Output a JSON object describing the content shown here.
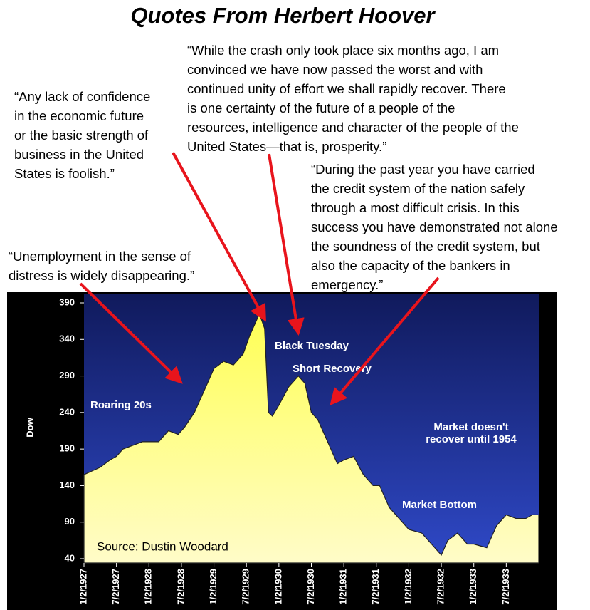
{
  "title": "Quotes From Herbert Hoover",
  "quotes": [
    {
      "lines": [
        "“Any lack of confidence",
        "in the economic future",
        "or the basic strength of",
        "business in the United",
        "States is foolish.”"
      ]
    },
    {
      "lines": [
        "“While the crash only took place six months ago, I am",
        "convinced we have now passed the worst and with",
        "continued unity of effort we shall rapidly recover. There",
        "is one certainty of the future of a people of the",
        "resources, intelligence and character of the people of the",
        "United States—that is, prosperity.”"
      ]
    },
    {
      "lines": [
        "“During the past year you have carried",
        "the credit system of the nation safely",
        "through a most difficult crisis. In this",
        "success you have demonstrated not alone",
        "the soundness of the credit system, but",
        "also the capacity of the bankers in",
        "emergency.”"
      ]
    },
    {
      "lines": [
        "“Unemployment in the sense of",
        "distress is widely disappearing.”"
      ]
    }
  ],
  "chart_data": {
    "type": "area",
    "y_label": "Dow",
    "color": "#ffff66",
    "source": "Source: Dustin Woodard",
    "x": [
      1927.0,
      1927.25,
      1927.4,
      1927.5,
      1927.6,
      1927.75,
      1927.9,
      1928.0,
      1928.15,
      1928.3,
      1928.45,
      1928.55,
      1928.7,
      1928.85,
      1929.0,
      1929.15,
      1929.3,
      1929.45,
      1929.55,
      1929.7,
      1929.78,
      1929.84,
      1929.9,
      1930.0,
      1930.15,
      1930.3,
      1930.4,
      1930.5,
      1930.6,
      1930.75,
      1930.9,
      1931.0,
      1931.15,
      1931.3,
      1931.45,
      1931.55,
      1931.7,
      1931.85,
      1932.0,
      1932.2,
      1932.35,
      1932.5,
      1932.6,
      1932.75,
      1932.9,
      1933.0,
      1933.2,
      1933.35,
      1933.5,
      1933.65,
      1933.8,
      1933.9,
      1934.0
    ],
    "values": [
      155,
      165,
      175,
      180,
      190,
      195,
      200,
      200,
      200,
      215,
      210,
      220,
      240,
      270,
      300,
      310,
      305,
      320,
      345,
      375,
      355,
      240,
      235,
      250,
      275,
      290,
      280,
      240,
      230,
      200,
      170,
      175,
      180,
      155,
      140,
      140,
      110,
      95,
      80,
      75,
      60,
      45,
      65,
      75,
      60,
      60,
      55,
      85,
      100,
      95,
      95,
      100,
      100
    ],
    "xlim": [
      1927.0,
      1934.0
    ],
    "xticks": [
      {
        "value": 1927.0,
        "label": "1/2/1927"
      },
      {
        "value": 1927.5,
        "label": "7/2/1927"
      },
      {
        "value": 1928.0,
        "label": "1/2/1928"
      },
      {
        "value": 1928.5,
        "label": "7/2/1928"
      },
      {
        "value": 1929.0,
        "label": "1/2/1929"
      },
      {
        "value": 1929.5,
        "label": "7/2/1929"
      },
      {
        "value": 1930.0,
        "label": "1/2/1930"
      },
      {
        "value": 1930.5,
        "label": "7/2/1930"
      },
      {
        "value": 1931.0,
        "label": "1/2/1931"
      },
      {
        "value": 1931.5,
        "label": "7/2/1931"
      },
      {
        "value": 1932.0,
        "label": "1/2/1932"
      },
      {
        "value": 1932.5,
        "label": "7/2/1932"
      },
      {
        "value": 1933.0,
        "label": "1/2/1933"
      },
      {
        "value": 1933.5,
        "label": "7/2/1933"
      }
    ],
    "ylim": [
      40,
      390
    ],
    "yticks": [
      40,
      90,
      140,
      190,
      240,
      290,
      340,
      390
    ],
    "annotations": [
      "Roaring 20s",
      "Black Tuesday",
      "Short Recovery",
      "Market doesn't",
      "recover until 1954",
      "Market Bottom"
    ]
  }
}
